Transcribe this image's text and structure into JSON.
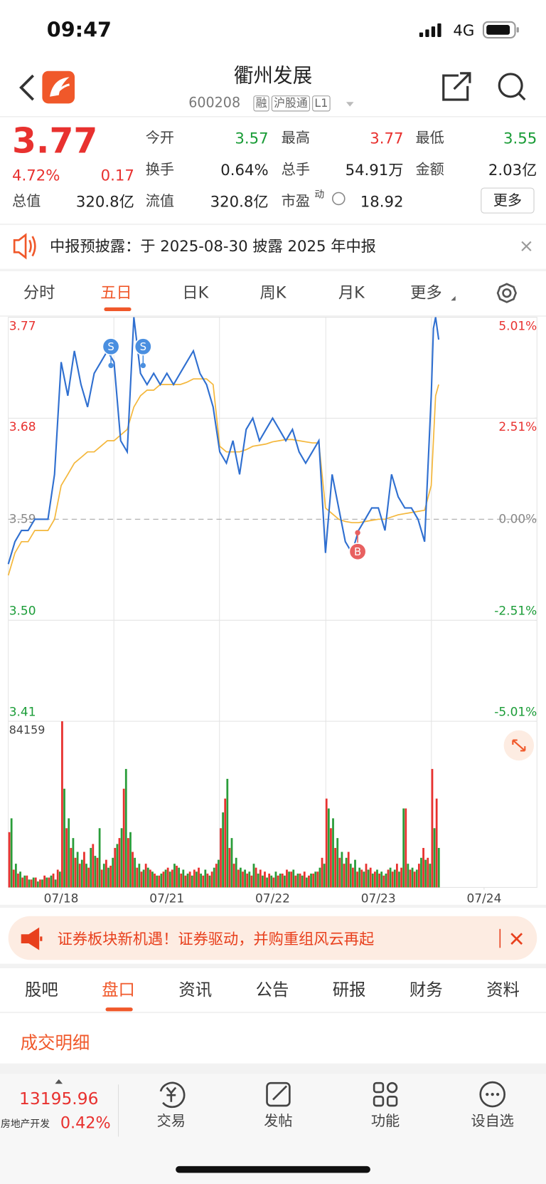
{
  "status": {
    "time": "09:47",
    "network": "4G"
  },
  "header": {
    "title": "衢州发展",
    "code": "600208",
    "tags": [
      "融",
      "沪股通",
      "L1"
    ]
  },
  "quote": {
    "price": "3.77",
    "change_pct": "4.72%",
    "change": "0.17",
    "fields": [
      {
        "label": "今开",
        "value": "3.57",
        "color": "#1a9c37"
      },
      {
        "label": "最高",
        "value": "3.77",
        "color": "#e8312f"
      },
      {
        "label": "最低",
        "value": "3.55",
        "color": "#1a9c37"
      },
      {
        "label": "换手",
        "value": "0.64%",
        "color": "#222"
      },
      {
        "label": "总手",
        "value": "54.91万",
        "color": "#222"
      },
      {
        "label": "金额",
        "value": "2.03亿",
        "color": "#222"
      },
      {
        "label": "总值",
        "value": "320.8亿",
        "color": "#222"
      },
      {
        "label": "流值",
        "value": "320.8亿",
        "color": "#222"
      },
      {
        "label": "市盈",
        "sup": "动",
        "value": "18.92",
        "color": "#222"
      }
    ],
    "more": "更多"
  },
  "notice": "中报预披露：于 2025-08-30 披露 2025 年中报",
  "tabs": [
    "分时",
    "五日",
    "日K",
    "周K",
    "月K",
    "更多"
  ],
  "chart_data": {
    "type": "line",
    "x": [
      0,
      15,
      30,
      45,
      60,
      75,
      90,
      105,
      120,
      135,
      150,
      165,
      180,
      195,
      210,
      225,
      240,
      255,
      270,
      285,
      300,
      315,
      330,
      345,
      360,
      375,
      390,
      405,
      420,
      435,
      450,
      465,
      480,
      495,
      510,
      525,
      540,
      555,
      570,
      585,
      600,
      615,
      630,
      645,
      660,
      675,
      690,
      705,
      720,
      735,
      750,
      765,
      780,
      795,
      810,
      825,
      840,
      855,
      870,
      885,
      900,
      915,
      930,
      945,
      960,
      965,
      970,
      977
    ],
    "xlim": [
      0,
      1200
    ],
    "xticks": [
      {
        "value": 120,
        "label": "07/18"
      },
      {
        "value": 360,
        "label": "07/21"
      },
      {
        "value": 600,
        "label": "07/22"
      },
      {
        "value": 840,
        "label": "07/23"
      },
      {
        "value": 1080,
        "label": "07/24"
      }
    ],
    "ylim": [
      3.41,
      3.77
    ],
    "yticks": [
      3.77,
      3.68,
      3.59,
      {
        "value": 3.5,
        "label": "3.50"
      },
      3.41
    ],
    "y2lim": [
      -5.01,
      5.01
    ],
    "y2ticks": [
      {
        "value": 5.01,
        "label": "5.01%"
      },
      {
        "value": 2.51,
        "label": "2.51%"
      },
      {
        "value": 0,
        "label": "0.00%"
      },
      {
        "value": -2.51,
        "label": "-2.51%"
      },
      {
        "value": -5.01,
        "label": "-5.01%"
      }
    ],
    "series": [
      {
        "color": "#2f6fd0",
        "values": [
          3.55,
          3.57,
          3.58,
          3.58,
          3.59,
          3.59,
          3.59,
          3.63,
          3.73,
          3.7,
          3.74,
          3.71,
          3.69,
          3.72,
          3.73,
          3.74,
          3.73,
          3.66,
          3.65,
          3.77,
          3.72,
          3.71,
          3.72,
          3.71,
          3.72,
          3.71,
          3.72,
          3.73,
          3.74,
          3.72,
          3.71,
          3.69,
          3.65,
          3.64,
          3.66,
          3.63,
          3.67,
          3.68,
          3.66,
          3.67,
          3.68,
          3.67,
          3.66,
          3.67,
          3.65,
          3.64,
          3.65,
          3.66,
          3.56,
          3.63,
          3.6,
          3.57,
          3.56,
          3.58,
          3.59,
          3.6,
          3.6,
          3.58,
          3.63,
          3.61,
          3.6,
          3.6,
          3.59,
          3.57,
          3.7,
          3.76,
          3.77,
          3.75
        ]
      },
      {
        "color": "#f4b73b",
        "values": [
          3.54,
          3.56,
          3.57,
          3.57,
          3.58,
          3.58,
          3.58,
          3.59,
          3.62,
          3.63,
          3.64,
          3.645,
          3.65,
          3.65,
          3.655,
          3.66,
          3.66,
          3.665,
          3.67,
          3.69,
          3.7,
          3.705,
          3.705,
          3.71,
          3.71,
          3.71,
          3.71,
          3.712,
          3.715,
          3.715,
          3.715,
          3.71,
          3.655,
          3.65,
          3.65,
          3.65,
          3.652,
          3.655,
          3.656,
          3.657,
          3.659,
          3.66,
          3.661,
          3.661,
          3.66,
          3.659,
          3.658,
          3.658,
          3.6,
          3.595,
          3.59,
          3.588,
          3.587,
          3.587,
          3.588,
          3.589,
          3.59,
          3.59,
          3.592,
          3.594,
          3.595,
          3.596,
          3.597,
          3.598,
          3.62,
          3.66,
          3.7,
          3.71
        ]
      }
    ],
    "markers": [
      {
        "label": "S",
        "x": 233,
        "value": 3.727,
        "color": "#4a8fe0"
      },
      {
        "label": "S",
        "x": 306,
        "value": 3.727,
        "color": "#4a8fe0"
      },
      {
        "label": "B",
        "x": 793,
        "value": 3.578,
        "color": "#e86060"
      }
    ],
    "volume": {
      "type": "bar",
      "x": [
        0,
        10,
        20,
        30,
        40,
        50,
        60,
        70,
        80,
        90,
        100,
        110,
        120,
        130,
        140,
        150,
        160,
        170,
        180,
        190,
        200,
        210,
        220,
        230,
        240,
        250,
        260,
        270,
        280,
        290,
        300,
        310,
        320,
        330,
        340,
        350,
        360,
        370,
        380,
        390,
        400,
        410,
        420,
        430,
        440,
        450,
        460,
        470,
        480,
        490,
        500,
        510,
        520,
        530,
        540,
        550,
        560,
        570,
        580,
        590,
        600,
        610,
        620,
        630,
        640,
        650,
        660,
        670,
        680,
        690,
        700,
        710,
        720,
        730,
        740,
        750,
        760,
        770,
        780,
        790,
        800,
        810,
        820,
        830,
        840,
        850,
        860,
        870,
        880,
        890,
        900,
        910,
        920,
        930,
        940,
        950,
        960,
        970
      ],
      "ylim": [
        0,
        84159
      ],
      "yticks": [
        84159
      ],
      "series": [
        {
          "color": "#e8312f",
          "values": [
            28000,
            9000,
            7000,
            5000,
            6000,
            4000,
            5000,
            4000,
            6000,
            5000,
            7000,
            9000,
            84159,
            30000,
            20000,
            15000,
            12000,
            18000,
            10000,
            22000,
            15000,
            9000,
            14000,
            11000,
            20000,
            25000,
            50000,
            25000,
            18000,
            10000,
            8000,
            12000,
            9000,
            7000,
            6000,
            8000,
            10000,
            9000,
            11000,
            7000,
            6000,
            8000,
            9000,
            10000,
            6000,
            7000,
            8000,
            12000,
            30000,
            45000,
            20000,
            12000,
            9000,
            8000,
            7000,
            6000,
            10000,
            9000,
            8000,
            7000,
            5000,
            6000,
            7000,
            9000,
            8000,
            6000,
            7000,
            8000,
            6000,
            7000,
            8000,
            15000,
            45000,
            30000,
            20000,
            15000,
            12000,
            18000,
            10000,
            8000,
            9000,
            12000,
            10000,
            8000,
            7000,
            6000,
            9000,
            8000,
            12000,
            10000,
            40000,
            9000,
            8000,
            12000,
            20000,
            15000,
            60000,
            45000
          ]
        },
        {
          "color": "#2a9d3a",
          "values": [
            35000,
            12000,
            8000,
            6000,
            4000,
            5000,
            3000,
            4000,
            5000,
            6000,
            4000,
            8000,
            50000,
            35000,
            25000,
            18000,
            14000,
            12000,
            20000,
            16000,
            30000,
            12000,
            10000,
            15000,
            22000,
            30000,
            60000,
            28000,
            15000,
            12000,
            9000,
            10000,
            8000,
            6000,
            7000,
            9000,
            8000,
            12000,
            10000,
            9000,
            7000,
            6000,
            8000,
            7000,
            9000,
            6000,
            10000,
            14000,
            38000,
            55000,
            25000,
            15000,
            10000,
            9000,
            8000,
            12000,
            7000,
            6000,
            5000,
            6000,
            8000,
            7000,
            6000,
            8000,
            9000,
            7000,
            6000,
            5000,
            7000,
            8000,
            10000,
            12000,
            40000,
            35000,
            25000,
            18000,
            15000,
            12000,
            14000,
            10000,
            8000,
            9000,
            7000,
            9000,
            8000,
            7000,
            10000,
            9000,
            8000,
            40000,
            12000,
            10000,
            9000,
            15000,
            14000,
            12000,
            30000,
            20000
          ]
        }
      ]
    }
  },
  "banner": "证券板块新机遇！证券驱动，并购重组风云再起",
  "subtabs": [
    "股吧",
    "盘口",
    "资讯",
    "公告",
    "研报",
    "财务",
    "资料"
  ],
  "section": "成交明细",
  "bottom": {
    "index_value": "13195.96",
    "index_name": "房地产开发",
    "index_change": "0.42%",
    "items": [
      "交易",
      "发帖",
      "功能",
      "设自选"
    ]
  }
}
